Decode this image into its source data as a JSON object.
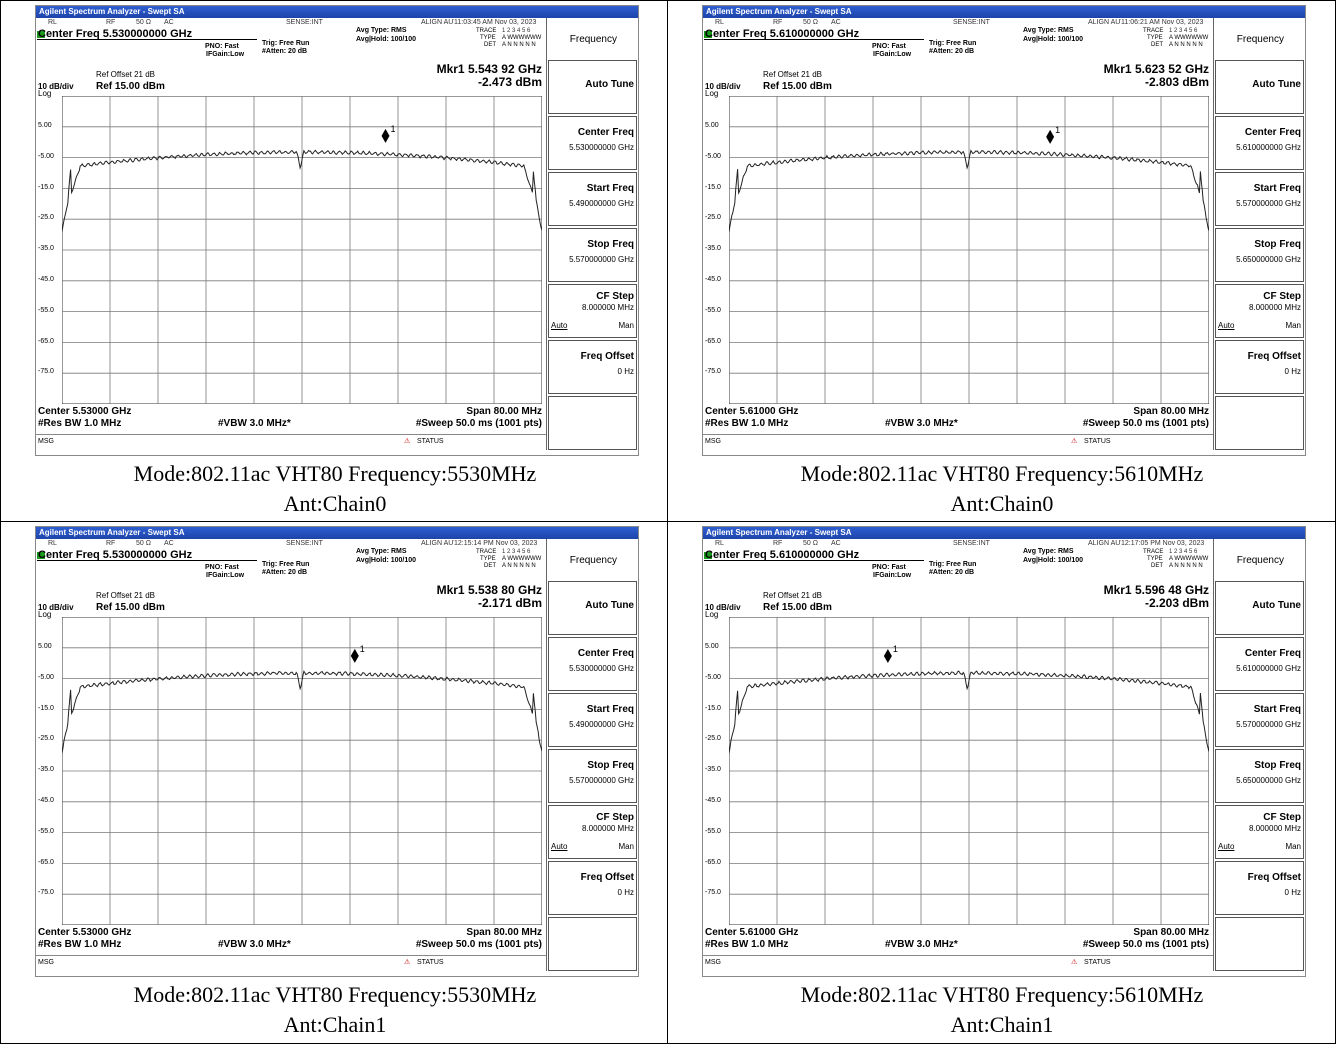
{
  "window_title": "Agilent Spectrum Analyzer - Swept SA",
  "status": {
    "rl": "RL",
    "rf": "RF",
    "ohm": "50 Ω",
    "ac": "AC",
    "sense": "SENSE:INT",
    "align": "ALIGN AUTO"
  },
  "trace_info": {
    "trace": "TRACE",
    "trace_nums": "1 2 3 4 5 6",
    "type": "TYPE",
    "type_val": "A WWWWWW",
    "det": "DET",
    "det_val": "A N N N N N"
  },
  "common": {
    "pno": "PNO: Fast",
    "ifgain": "IFGain:Low",
    "trig": "Trig: Free Run",
    "atten": "#Atten: 20 dB",
    "avg_type": "Avg Type: RMS",
    "avg_hold": "Avg|Hold: 100/100",
    "ref_offset": "Ref Offset 21 dB",
    "scale": "10 dB/div",
    "ref": "Ref 15.00 dBm",
    "log": "Log",
    "res_bw": "#Res BW 1.0 MHz",
    "vbw": "#VBW 3.0 MHz*",
    "span": "Span 80.00 MHz",
    "sweep": "#Sweep  50.0 ms (1001 pts)",
    "msg": "MSG",
    "status_label": "STATUS",
    "y_ticks": [
      "5.00",
      "-5.00",
      "-15.0",
      "-25.0",
      "-35.0",
      "-45.0",
      "-55.0",
      "-65.0",
      "-75.0"
    ]
  },
  "softkeys": {
    "frequency": "Frequency",
    "auto_tune": "Auto Tune",
    "center_freq": "Center Freq",
    "start_freq": "Start Freq",
    "stop_freq": "Stop Freq",
    "cf_step": "CF Step",
    "cf_step_val": "8.000000 MHz",
    "auto": "Auto",
    "man": "Man",
    "freq_offset": "Freq Offset",
    "freq_offset_val": "0 Hz"
  },
  "panels": [
    {
      "time": "11:03:45 AM Nov 03, 2023",
      "center_freq": "Center Freq 5.530000000 GHz",
      "mkr_freq": "Mkr1 5.543 92 GHz",
      "mkr_level": "-2.473 dBm",
      "center": "Center 5.53000 GHz",
      "sk_center": "5.530000000 GHz",
      "sk_start": "5.490000000 GHz",
      "sk_stop": "5.570000000 GHz",
      "marker_x_mhz": 13.92,
      "marker_y_dbm": -2.473,
      "caption_line1": "Mode:802.11ac VHT80 Frequency:5530MHz",
      "caption_line2": "Ant:Chain0"
    },
    {
      "time": "11:06:21 AM Nov 03, 2023",
      "center_freq": "Center Freq 5.610000000 GHz",
      "mkr_freq": "Mkr1 5.623 52 GHz",
      "mkr_level": "-2.803 dBm",
      "center": "Center 5.61000 GHz",
      "sk_center": "5.610000000 GHz",
      "sk_start": "5.570000000 GHz",
      "sk_stop": "5.650000000 GHz",
      "marker_x_mhz": 13.52,
      "marker_y_dbm": -2.803,
      "caption_line1": "Mode:802.11ac VHT80 Frequency:5610MHz",
      "caption_line2": "Ant:Chain0"
    },
    {
      "time": "12:15:14 PM Nov 03, 2023",
      "center_freq": "Center Freq 5.530000000 GHz",
      "mkr_freq": "Mkr1 5.538 80 GHz",
      "mkr_level": "-2.171 dBm",
      "center": "Center 5.53000 GHz",
      "sk_center": "5.530000000 GHz",
      "sk_start": "5.490000000 GHz",
      "sk_stop": "5.570000000 GHz",
      "marker_x_mhz": 8.8,
      "marker_y_dbm": -2.171,
      "caption_line1": "Mode:802.11ac VHT80 Frequency:5530MHz",
      "caption_line2": "Ant:Chain1"
    },
    {
      "time": "12:17:05 PM Nov 03, 2023",
      "center_freq": "Center Freq 5.610000000 GHz",
      "mkr_freq": "Mkr1 5.596 48 GHz",
      "mkr_level": "-2.203 dBm",
      "center": "Center 5.61000 GHz",
      "sk_center": "5.610000000 GHz",
      "sk_start": "5.570000000 GHz",
      "sk_stop": "5.650000000 GHz",
      "marker_x_mhz": -13.52,
      "marker_y_dbm": -2.203,
      "caption_line1": "Mode:802.11ac VHT80 Frequency:5610MHz",
      "caption_line2": "Ant:Chain1"
    }
  ],
  "colors": {
    "titlebar": "#1c44aa",
    "grid": "#7a7a7a",
    "trace": "#222222"
  }
}
